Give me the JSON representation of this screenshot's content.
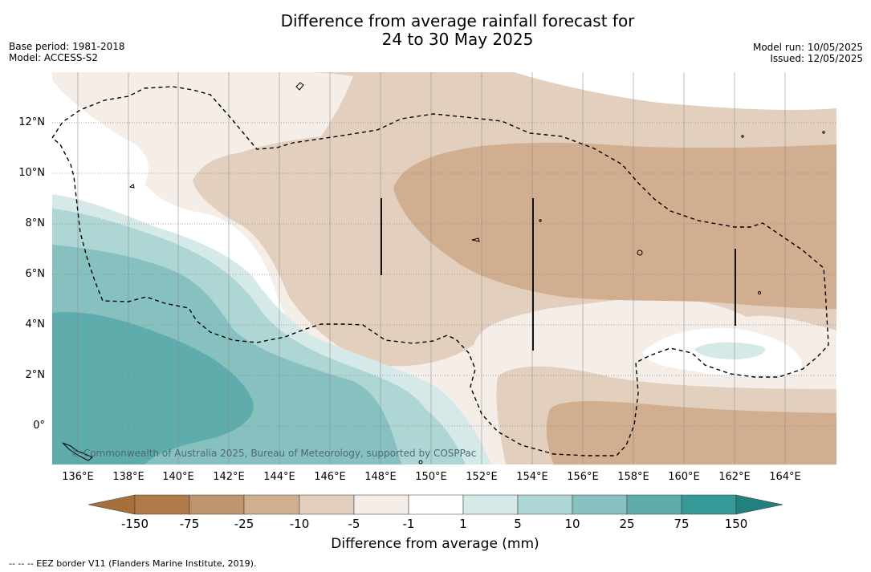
{
  "header": {
    "title_line1": "Difference from average rainfall forecast for",
    "title_line2": "24 to 30 May 2025",
    "base_period": "Base period: 1981-2018",
    "model": "Model: ACCESS-S2",
    "model_run": "Model run: 10/05/2025",
    "issued": "Issued: 12/05/2025"
  },
  "map": {
    "lat_labels": [
      "12°N",
      "10°N",
      "8°N",
      "6°N",
      "4°N",
      "2°N",
      "0°"
    ],
    "lon_labels": [
      "136°E",
      "138°E",
      "140°E",
      "142°E",
      "144°E",
      "146°E",
      "148°E",
      "150°E",
      "152°E",
      "154°E",
      "156°E",
      "158°E",
      "160°E",
      "162°E",
      "164°E"
    ],
    "copyright": "© Commonwealth of Australia 2025, Bureau of Meteorology, supported by COSPPac"
  },
  "colorbar": {
    "title": "Difference from average (mm)",
    "tick_labels": [
      "-150",
      "-75",
      "-25",
      "-10",
      "-5",
      "-1",
      "1",
      "5",
      "10",
      "25",
      "75",
      "150"
    ],
    "colors": [
      "#a6703a",
      "#b07b48",
      "#bf9570",
      "#d0ae8f",
      "#e3cfbe",
      "#f4ede8",
      "#ffffff",
      "#d4e9e8",
      "#add6d5",
      "#86c1c0",
      "#5eacab",
      "#359998",
      "#24807f"
    ]
  },
  "footnote": "--  --  -- EEZ border V11 (Flanders Marine Institute, 2019)."
}
